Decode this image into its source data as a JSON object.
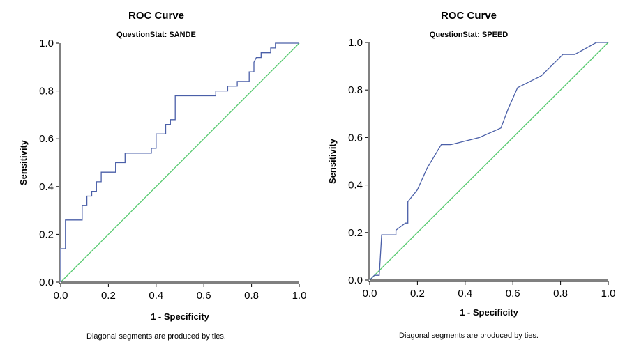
{
  "chart_data": [
    {
      "type": "line",
      "title": "ROC Curve",
      "subtitle": "QuestionStat: SANDE",
      "xlabel": "1 - Specificity",
      "ylabel": "Sensitivity",
      "xlim": [
        0,
        1
      ],
      "ylim": [
        0,
        1
      ],
      "xticks": [
        "0.0",
        "0.2",
        "0.4",
        "0.6",
        "0.8",
        "1.0"
      ],
      "yticks": [
        "0.0",
        "0.2",
        "0.4",
        "0.6",
        "0.8",
        "1.0"
      ],
      "footnote": "Diagonal segments are produced by ties.",
      "grid": false,
      "series": [
        {
          "color": "#4a5fa8",
          "x": [
            0,
            0,
            0.02,
            0.02,
            0.09,
            0.09,
            0.11,
            0.11,
            0.13,
            0.13,
            0.15,
            0.15,
            0.17,
            0.17,
            0.19,
            0.19,
            0.23,
            0.23,
            0.27,
            0.27,
            0.38,
            0.38,
            0.4,
            0.4,
            0.44,
            0.44,
            0.46,
            0.46,
            0.48,
            0.48,
            0.65,
            0.65,
            0.7,
            0.7,
            0.74,
            0.74,
            0.79,
            0.79,
            0.81,
            0.81,
            0.82,
            0.84,
            0.84,
            0.88,
            0.88,
            0.9,
            0.9,
            1.0
          ],
          "y": [
            0,
            0.14,
            0.14,
            0.26,
            0.26,
            0.32,
            0.32,
            0.36,
            0.36,
            0.38,
            0.38,
            0.42,
            0.42,
            0.46,
            0.46,
            0.46,
            0.46,
            0.5,
            0.5,
            0.54,
            0.54,
            0.56,
            0.56,
            0.62,
            0.62,
            0.66,
            0.66,
            0.68,
            0.68,
            0.78,
            0.78,
            0.8,
            0.8,
            0.82,
            0.82,
            0.84,
            0.84,
            0.88,
            0.88,
            0.92,
            0.94,
            0.94,
            0.96,
            0.96,
            0.98,
            0.98,
            1.0,
            1.0
          ]
        },
        {
          "color": "#55c96e",
          "x": [
            0,
            1
          ],
          "y": [
            0,
            1
          ]
        }
      ]
    },
    {
      "type": "line",
      "title": "ROC Curve",
      "subtitle": "QuestionStat: SPEED",
      "xlabel": "1 - Specificity",
      "ylabel": "Sensitivity",
      "xlim": [
        0,
        1
      ],
      "ylim": [
        0,
        1
      ],
      "xticks": [
        "0.0",
        "0.2",
        "0.4",
        "0.6",
        "0.8",
        "1.0"
      ],
      "yticks": [
        "0.0",
        "0.2",
        "0.4",
        "0.6",
        "0.8",
        "1.0"
      ],
      "footnote": "Diagonal segments are produced by ties.",
      "grid": false,
      "series": [
        {
          "color": "#4a5fa8",
          "x": [
            0,
            0.02,
            0.02,
            0.04,
            0.05,
            0.05,
            0.11,
            0.11,
            0.15,
            0.16,
            0.16,
            0.2,
            0.24,
            0.3,
            0.34,
            0.46,
            0.55,
            0.58,
            0.62,
            0.72,
            0.81,
            0.86,
            0.95,
            1.0
          ],
          "y": [
            0,
            0.02,
            0.02,
            0.02,
            0.19,
            0.19,
            0.19,
            0.21,
            0.24,
            0.24,
            0.33,
            0.38,
            0.47,
            0.57,
            0.57,
            0.6,
            0.64,
            0.72,
            0.81,
            0.86,
            0.95,
            0.95,
            1.0,
            1.0
          ]
        },
        {
          "color": "#55c96e",
          "x": [
            0,
            1
          ],
          "y": [
            0,
            1
          ]
        }
      ]
    }
  ]
}
